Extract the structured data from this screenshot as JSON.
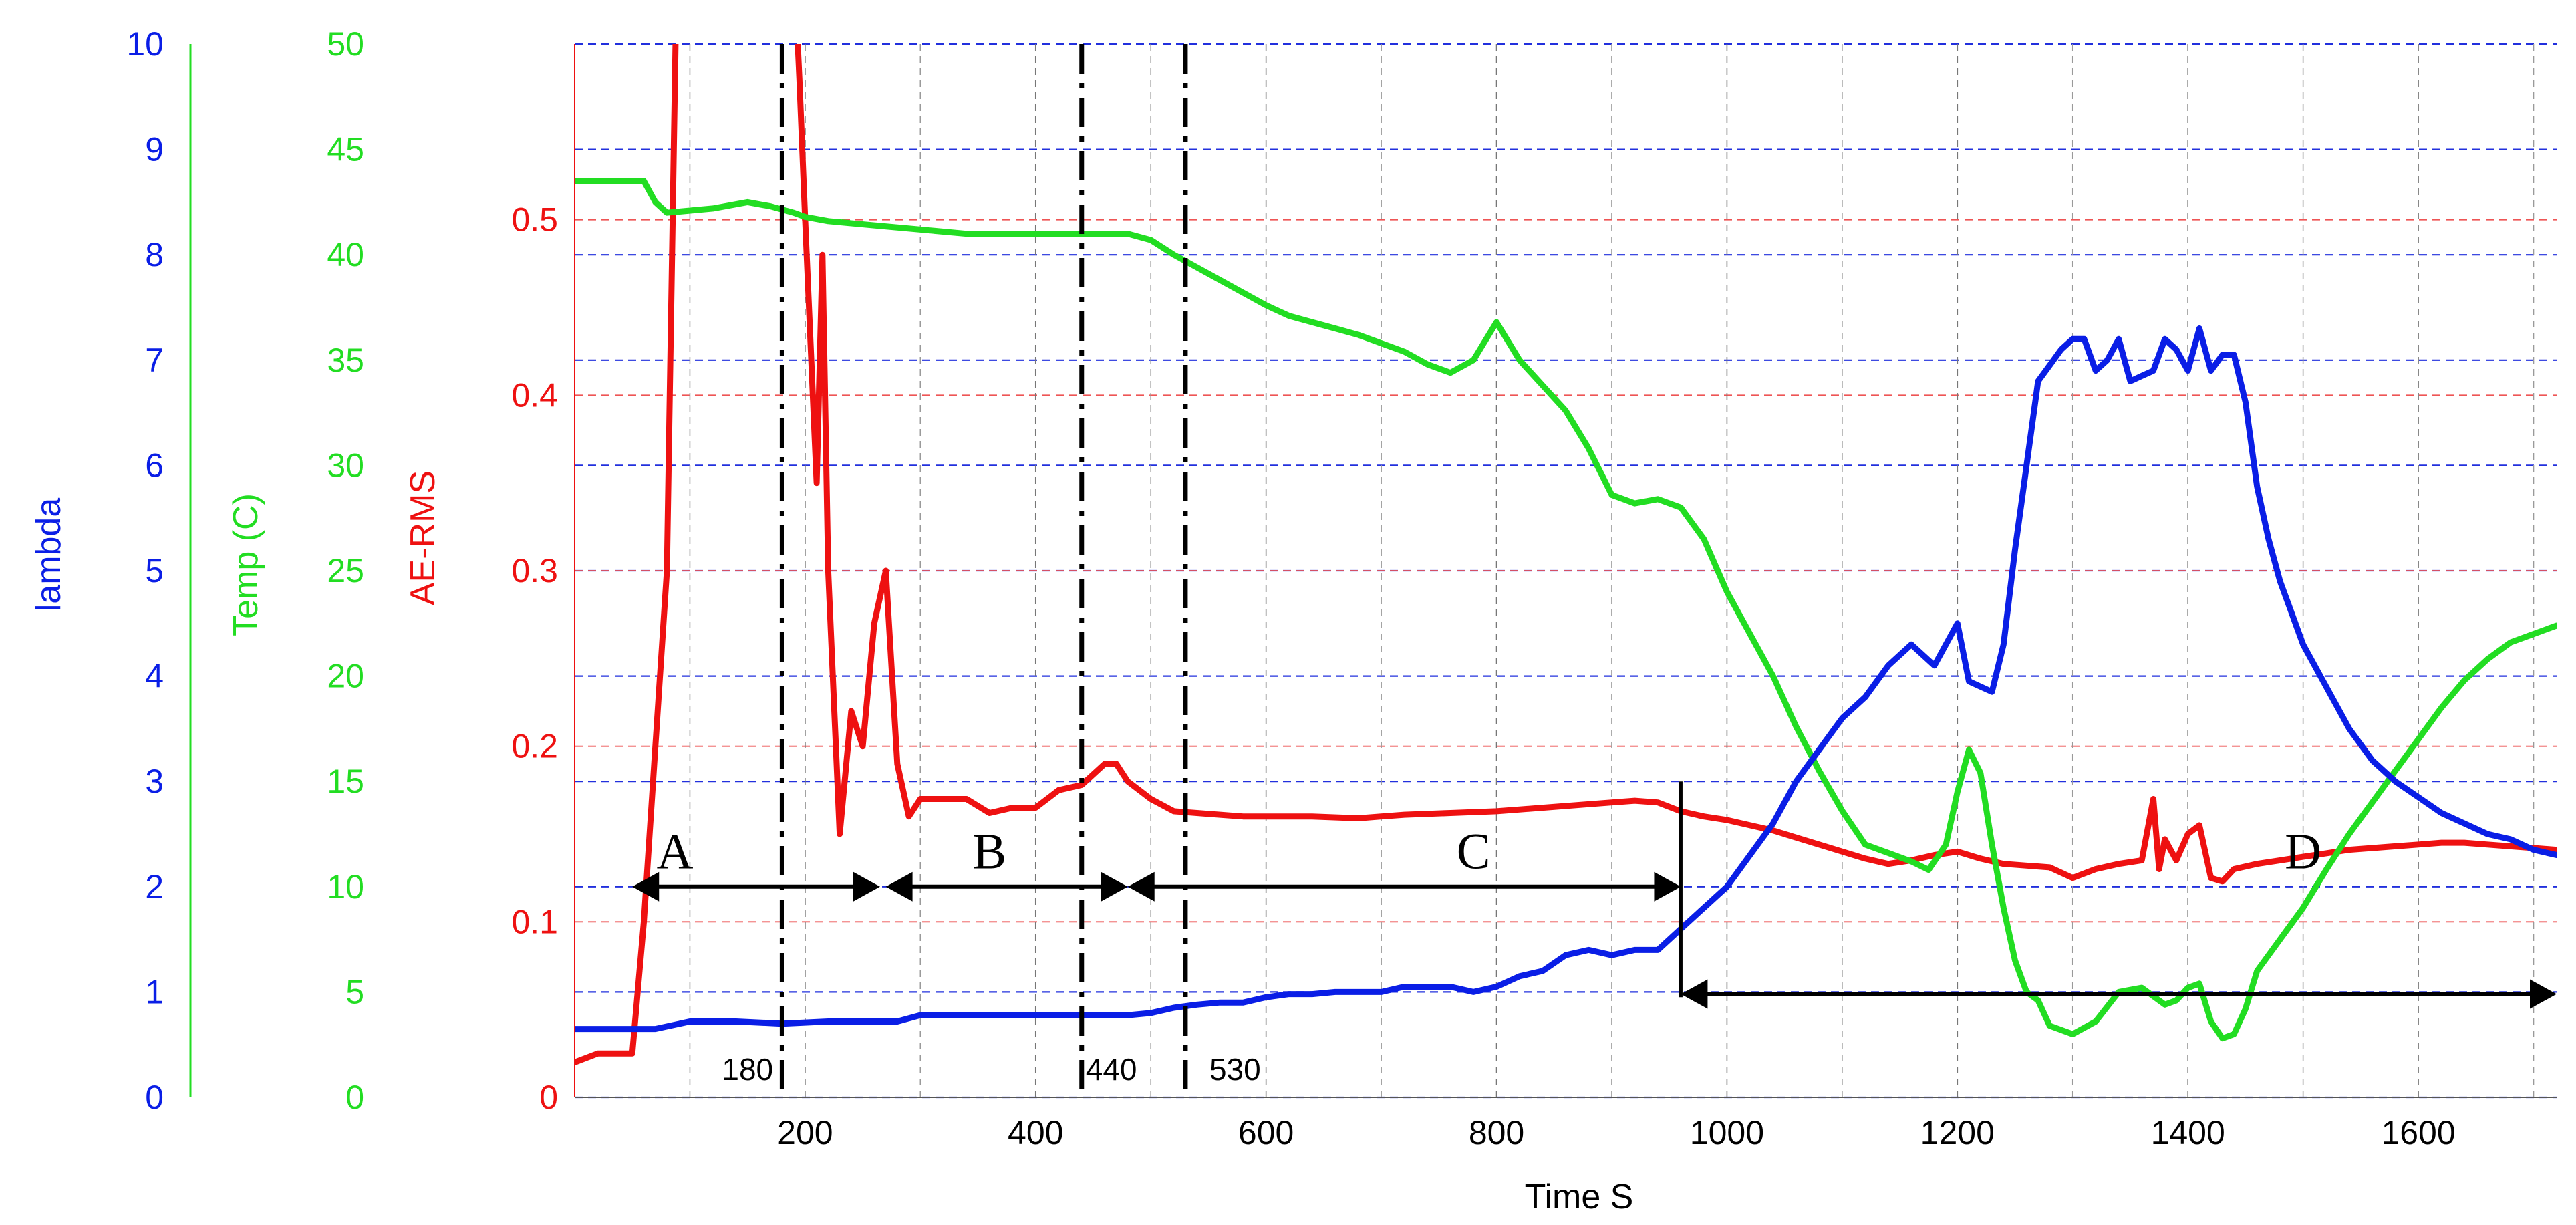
{
  "chart_data": {
    "type": "line",
    "xlabel": "Time S",
    "xlim": [
      0,
      1720
    ],
    "x_ticks": [
      "200",
      "400",
      "600",
      "800",
      "1000",
      "1200",
      "1400",
      "1600"
    ],
    "x_tick_values": [
      200,
      400,
      600,
      800,
      1000,
      1200,
      1400,
      1600
    ],
    "grid": true,
    "axes": [
      {
        "label": "lambda",
        "color": "#0a1ee6",
        "ylim": [
          0,
          10
        ],
        "ticks": [
          "0",
          "1",
          "2",
          "3",
          "4",
          "5",
          "6",
          "7",
          "8",
          "9",
          "10"
        ],
        "tick_values": [
          0,
          1,
          2,
          3,
          4,
          5,
          6,
          7,
          8,
          9,
          10
        ]
      },
      {
        "label": "Temp (C)",
        "color": "#22dd22",
        "ylim": [
          0,
          50
        ],
        "ticks": [
          "0",
          "5",
          "10",
          "15",
          "20",
          "25",
          "30",
          "35",
          "40",
          "45",
          "50"
        ],
        "tick_values": [
          0,
          5,
          10,
          15,
          20,
          25,
          30,
          35,
          40,
          45,
          50
        ]
      },
      {
        "label": "AE-RMS",
        "color": "#ee1111",
        "ylim": [
          0,
          0.6
        ],
        "ticks": [
          "0",
          "0.1",
          "0.2",
          "0.3",
          "0.4",
          "0.5"
        ],
        "tick_values": [
          0,
          0.1,
          0.2,
          0.3,
          0.4,
          0.5
        ]
      }
    ],
    "series": [
      {
        "axis": 0,
        "color": "#0a1ee6",
        "x": [
          0,
          50,
          70,
          100,
          140,
          180,
          220,
          240,
          260,
          280,
          300,
          340,
          380,
          420,
          460,
          480,
          500,
          520,
          540,
          560,
          580,
          600,
          620,
          640,
          660,
          680,
          700,
          720,
          740,
          760,
          780,
          800,
          820,
          840,
          860,
          880,
          900,
          920,
          940,
          960,
          980,
          1000,
          1020,
          1040,
          1060,
          1080,
          1100,
          1120,
          1140,
          1160,
          1180,
          1200,
          1210,
          1220,
          1230,
          1240,
          1250,
          1260,
          1270,
          1280,
          1290,
          1300,
          1310,
          1320,
          1330,
          1340,
          1350,
          1360,
          1370,
          1380,
          1390,
          1400,
          1410,
          1420,
          1430,
          1440,
          1450,
          1460,
          1470,
          1480,
          1490,
          1500,
          1520,
          1540,
          1560,
          1580,
          1600,
          1620,
          1640,
          1660,
          1680,
          1700,
          1720
        ],
        "y": [
          0.65,
          0.65,
          0.65,
          0.72,
          0.72,
          0.7,
          0.72,
          0.72,
          0.72,
          0.72,
          0.78,
          0.78,
          0.78,
          0.78,
          0.78,
          0.78,
          0.8,
          0.85,
          0.88,
          0.9,
          0.9,
          0.95,
          0.98,
          0.98,
          1.0,
          1.0,
          1.0,
          1.05,
          1.05,
          1.05,
          1.0,
          1.05,
          1.15,
          1.2,
          1.35,
          1.4,
          1.35,
          1.4,
          1.4,
          1.6,
          1.8,
          2.0,
          2.3,
          2.6,
          3.0,
          3.3,
          3.6,
          3.8,
          4.1,
          4.3,
          4.1,
          4.5,
          3.95,
          3.9,
          3.85,
          4.3,
          5.2,
          6.0,
          6.8,
          6.95,
          7.1,
          7.2,
          7.2,
          6.9,
          7.0,
          7.2,
          6.8,
          6.85,
          6.9,
          7.2,
          7.1,
          6.9,
          7.3,
          6.9,
          7.05,
          7.05,
          6.6,
          5.8,
          5.3,
          4.9,
          4.6,
          4.3,
          3.9,
          3.5,
          3.2,
          3.0,
          2.85,
          2.7,
          2.6,
          2.5,
          2.45,
          2.35,
          2.3
        ]
      },
      {
        "axis": 1,
        "color": "#22dd22",
        "x": [
          0,
          50,
          60,
          70,
          80,
          120,
          150,
          170,
          190,
          200,
          220,
          260,
          300,
          340,
          380,
          420,
          460,
          480,
          500,
          520,
          540,
          560,
          580,
          600,
          620,
          640,
          660,
          680,
          700,
          720,
          740,
          760,
          780,
          800,
          820,
          840,
          860,
          880,
          900,
          920,
          940,
          960,
          980,
          1000,
          1020,
          1040,
          1060,
          1080,
          1100,
          1120,
          1140,
          1160,
          1175,
          1190,
          1200,
          1210,
          1220,
          1230,
          1240,
          1250,
          1260,
          1270,
          1280,
          1300,
          1320,
          1340,
          1360,
          1380,
          1390,
          1400,
          1410,
          1420,
          1430,
          1440,
          1450,
          1460,
          1480,
          1500,
          1520,
          1540,
          1560,
          1580,
          1600,
          1620,
          1640,
          1660,
          1680,
          1700,
          1720
        ],
        "y": [
          43.5,
          43.5,
          43.5,
          42.5,
          42.0,
          42.2,
          42.5,
          42.3,
          42.0,
          41.8,
          41.6,
          41.4,
          41.2,
          41.0,
          41.0,
          41.0,
          41.0,
          41.0,
          40.7,
          40.0,
          39.4,
          38.8,
          38.2,
          37.6,
          37.1,
          36.8,
          36.5,
          36.2,
          35.8,
          35.4,
          34.8,
          34.4,
          35.0,
          36.8,
          35.0,
          33.8,
          32.6,
          30.8,
          28.6,
          28.2,
          28.4,
          28.0,
          26.5,
          24.0,
          22.0,
          20.0,
          17.6,
          15.5,
          13.6,
          12.0,
          11.6,
          11.2,
          10.8,
          12.0,
          14.5,
          16.5,
          15.4,
          12.0,
          9.0,
          6.5,
          5.0,
          4.6,
          3.4,
          3.0,
          3.6,
          5.0,
          5.2,
          4.4,
          4.6,
          5.2,
          5.4,
          3.6,
          2.8,
          3.0,
          4.2,
          6.0,
          7.5,
          9.0,
          10.8,
          12.5,
          14.0,
          15.5,
          17.0,
          18.5,
          19.8,
          20.8,
          21.6,
          22.0,
          22.4
        ]
      },
      {
        "axis": 2,
        "color": "#ee1111",
        "x": [
          0,
          20,
          50,
          60,
          80,
          90,
          100,
          110,
          180,
          190,
          195,
          200,
          210,
          215,
          220,
          230,
          240,
          250,
          260,
          270,
          280,
          290,
          300,
          320,
          340,
          360,
          380,
          400,
          420,
          440,
          460,
          470,
          480,
          500,
          520,
          540,
          560,
          580,
          600,
          640,
          680,
          700,
          720,
          760,
          800,
          840,
          880,
          900,
          920,
          940,
          960,
          980,
          1000,
          1020,
          1040,
          1060,
          1080,
          1100,
          1120,
          1140,
          1160,
          1180,
          1200,
          1220,
          1240,
          1260,
          1280,
          1300,
          1320,
          1340,
          1360,
          1370,
          1375,
          1380,
          1390,
          1400,
          1410,
          1420,
          1430,
          1440,
          1460,
          1480,
          1500,
          1520,
          1540,
          1560,
          1580,
          1600,
          1620,
          1640,
          1660,
          1680,
          1700,
          1720
        ],
        "y": [
          0.02,
          0.025,
          0.025,
          0.1,
          0.3,
          0.7,
          1.0,
          1.6,
          1.6,
          0.65,
          0.58,
          0.5,
          0.35,
          0.48,
          0.3,
          0.15,
          0.22,
          0.2,
          0.27,
          0.3,
          0.19,
          0.16,
          0.17,
          0.17,
          0.17,
          0.162,
          0.165,
          0.165,
          0.175,
          0.178,
          0.19,
          0.19,
          0.18,
          0.17,
          0.163,
          0.162,
          0.161,
          0.16,
          0.16,
          0.16,
          0.159,
          0.16,
          0.161,
          0.162,
          0.163,
          0.165,
          0.167,
          0.168,
          0.169,
          0.168,
          0.163,
          0.16,
          0.158,
          0.155,
          0.152,
          0.148,
          0.144,
          0.14,
          0.136,
          0.133,
          0.135,
          0.138,
          0.14,
          0.136,
          0.133,
          0.132,
          0.131,
          0.125,
          0.13,
          0.133,
          0.135,
          0.17,
          0.13,
          0.147,
          0.135,
          0.15,
          0.155,
          0.125,
          0.123,
          0.13,
          0.133,
          0.135,
          0.137,
          0.139,
          0.141,
          0.142,
          0.143,
          0.144,
          0.145,
          0.145,
          0.144,
          0.143,
          0.142,
          0.141
        ]
      }
    ],
    "phases": [
      {
        "label": "A",
        "from": 50,
        "to": 265,
        "level": 2.0
      },
      {
        "label": "B",
        "from": 270,
        "to": 480,
        "level": 2.0
      },
      {
        "label": "C",
        "from": 480,
        "to": 960,
        "level": 2.0
      },
      {
        "label": "D",
        "from": 960,
        "to": 1720,
        "level": 0.98
      }
    ],
    "markers": [
      {
        "x": 180,
        "label": "180",
        "style": "dashdot"
      },
      {
        "x": 440,
        "label": "440",
        "style": "dashdot"
      },
      {
        "x": 530,
        "label": "530",
        "style": "dashdot"
      },
      {
        "x": 960,
        "label": "",
        "style": "solid"
      }
    ]
  }
}
